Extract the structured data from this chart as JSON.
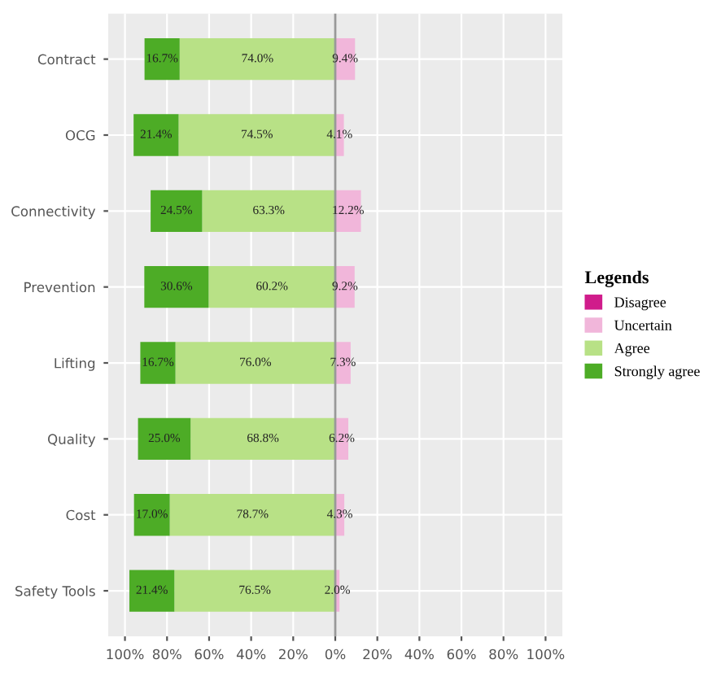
{
  "chart_data": {
    "type": "bar",
    "orientation": "horizontal",
    "categories": [
      "Contract",
      "OCG",
      "Connectivity",
      "Prevention",
      "Lifting",
      "Quality",
      "Cost",
      "Safety Tools"
    ],
    "series": [
      {
        "name": "Disagree",
        "color": "#d01c8b",
        "values": [
          null,
          null,
          null,
          null,
          null,
          null,
          null,
          null
        ]
      },
      {
        "name": "Uncertain",
        "color": "#f1b6da",
        "values": [
          9.4,
          4.1,
          12.2,
          9.2,
          7.3,
          6.2,
          4.3,
          2.0
        ],
        "base": [
          0,
          0,
          0,
          0,
          0,
          0,
          0,
          0
        ],
        "value_labels": [
          "9.4%",
          "4.1%",
          "12.2%",
          "9.2%",
          "7.3%",
          "6.2%",
          "4.3%",
          "2.0%"
        ]
      },
      {
        "name": "Agree",
        "color": "#b8e186",
        "values": [
          74.0,
          74.5,
          63.3,
          60.2,
          76.0,
          68.8,
          78.7,
          76.5
        ],
        "base": [
          -74.0,
          -74.5,
          -63.3,
          -60.2,
          -76.0,
          -68.8,
          -78.7,
          -76.5
        ],
        "value_labels": [
          "74.0%",
          "74.5%",
          "63.3%",
          "60.2%",
          "76.0%",
          "68.8%",
          "78.7%",
          "76.5%"
        ]
      },
      {
        "name": "Strongly agree",
        "color": "#4dac26",
        "values": [
          16.7,
          21.4,
          24.5,
          30.6,
          16.7,
          25.0,
          17.0,
          21.4
        ],
        "base": [
          -90.7,
          -95.9,
          -87.8,
          -90.8,
          -92.7,
          -93.8,
          -95.7,
          -97.9
        ],
        "value_labels": [
          "16.7%",
          "21.4%",
          "24.5%",
          "30.6%",
          "16.7%",
          "25.0%",
          "17.0%",
          "21.4%"
        ]
      }
    ],
    "xlim": [
      -108,
      108
    ],
    "xticks": [
      {
        "value": -100,
        "label": "100%"
      },
      {
        "value": -80,
        "label": "80%"
      },
      {
        "value": -60,
        "label": "60%"
      },
      {
        "value": -40,
        "label": "40%"
      },
      {
        "value": -20,
        "label": "20%"
      },
      {
        "value": 0,
        "label": "0%"
      },
      {
        "value": 20,
        "label": "20%"
      },
      {
        "value": 40,
        "label": "40%"
      },
      {
        "value": 60,
        "label": "60%"
      },
      {
        "value": 80,
        "label": "80%"
      },
      {
        "value": 100,
        "label": "100%"
      }
    ],
    "ref_lines": [
      {
        "axis": "x",
        "value": 0,
        "color": "#999999"
      }
    ],
    "legend": "right",
    "legend_title": "Legends",
    "grid": true
  }
}
